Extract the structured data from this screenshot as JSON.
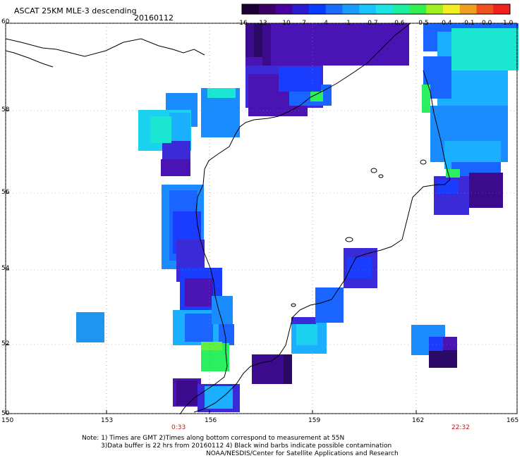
{
  "header": {
    "title": "ASCAT 25KM MLE-3 descending",
    "date": "20160112"
  },
  "colorbar": {
    "labels": [
      "-16",
      "-13",
      "-10",
      "-7",
      "-4",
      "-1",
      "-0.7",
      "-0.6",
      "-0.5",
      "-0.4",
      "-0.1",
      "0.0",
      "1.0"
    ],
    "colors": [
      "#1a0033",
      "#3a0066",
      "#4a00a0",
      "#2a1ad0",
      "#0a3cff",
      "#1a6cff",
      "#1a9cff",
      "#1ac4ff",
      "#1ae6e6",
      "#1af0a0",
      "#30f050",
      "#a0f020",
      "#f0f020",
      "#f0a020",
      "#f05020",
      "#f02020"
    ]
  },
  "axes": {
    "latitudes": [
      "60",
      "58",
      "56",
      "54",
      "52",
      "50"
    ],
    "longitudes": [
      "150",
      "153",
      "156",
      "159",
      "162",
      "165"
    ]
  },
  "times": {
    "left": "0:33",
    "right": "22:32"
  },
  "notes": {
    "line1": "Note: 1) Times are GMT 2)Times along bottom correspond to measurement at 55N",
    "line2": "3)Data buffer is 22 hrs from 20160112 4) Black wind barbs indicate possible contamination",
    "line3": "NOAA/NESDIS/Center for Satellite Applications and Research"
  }
}
